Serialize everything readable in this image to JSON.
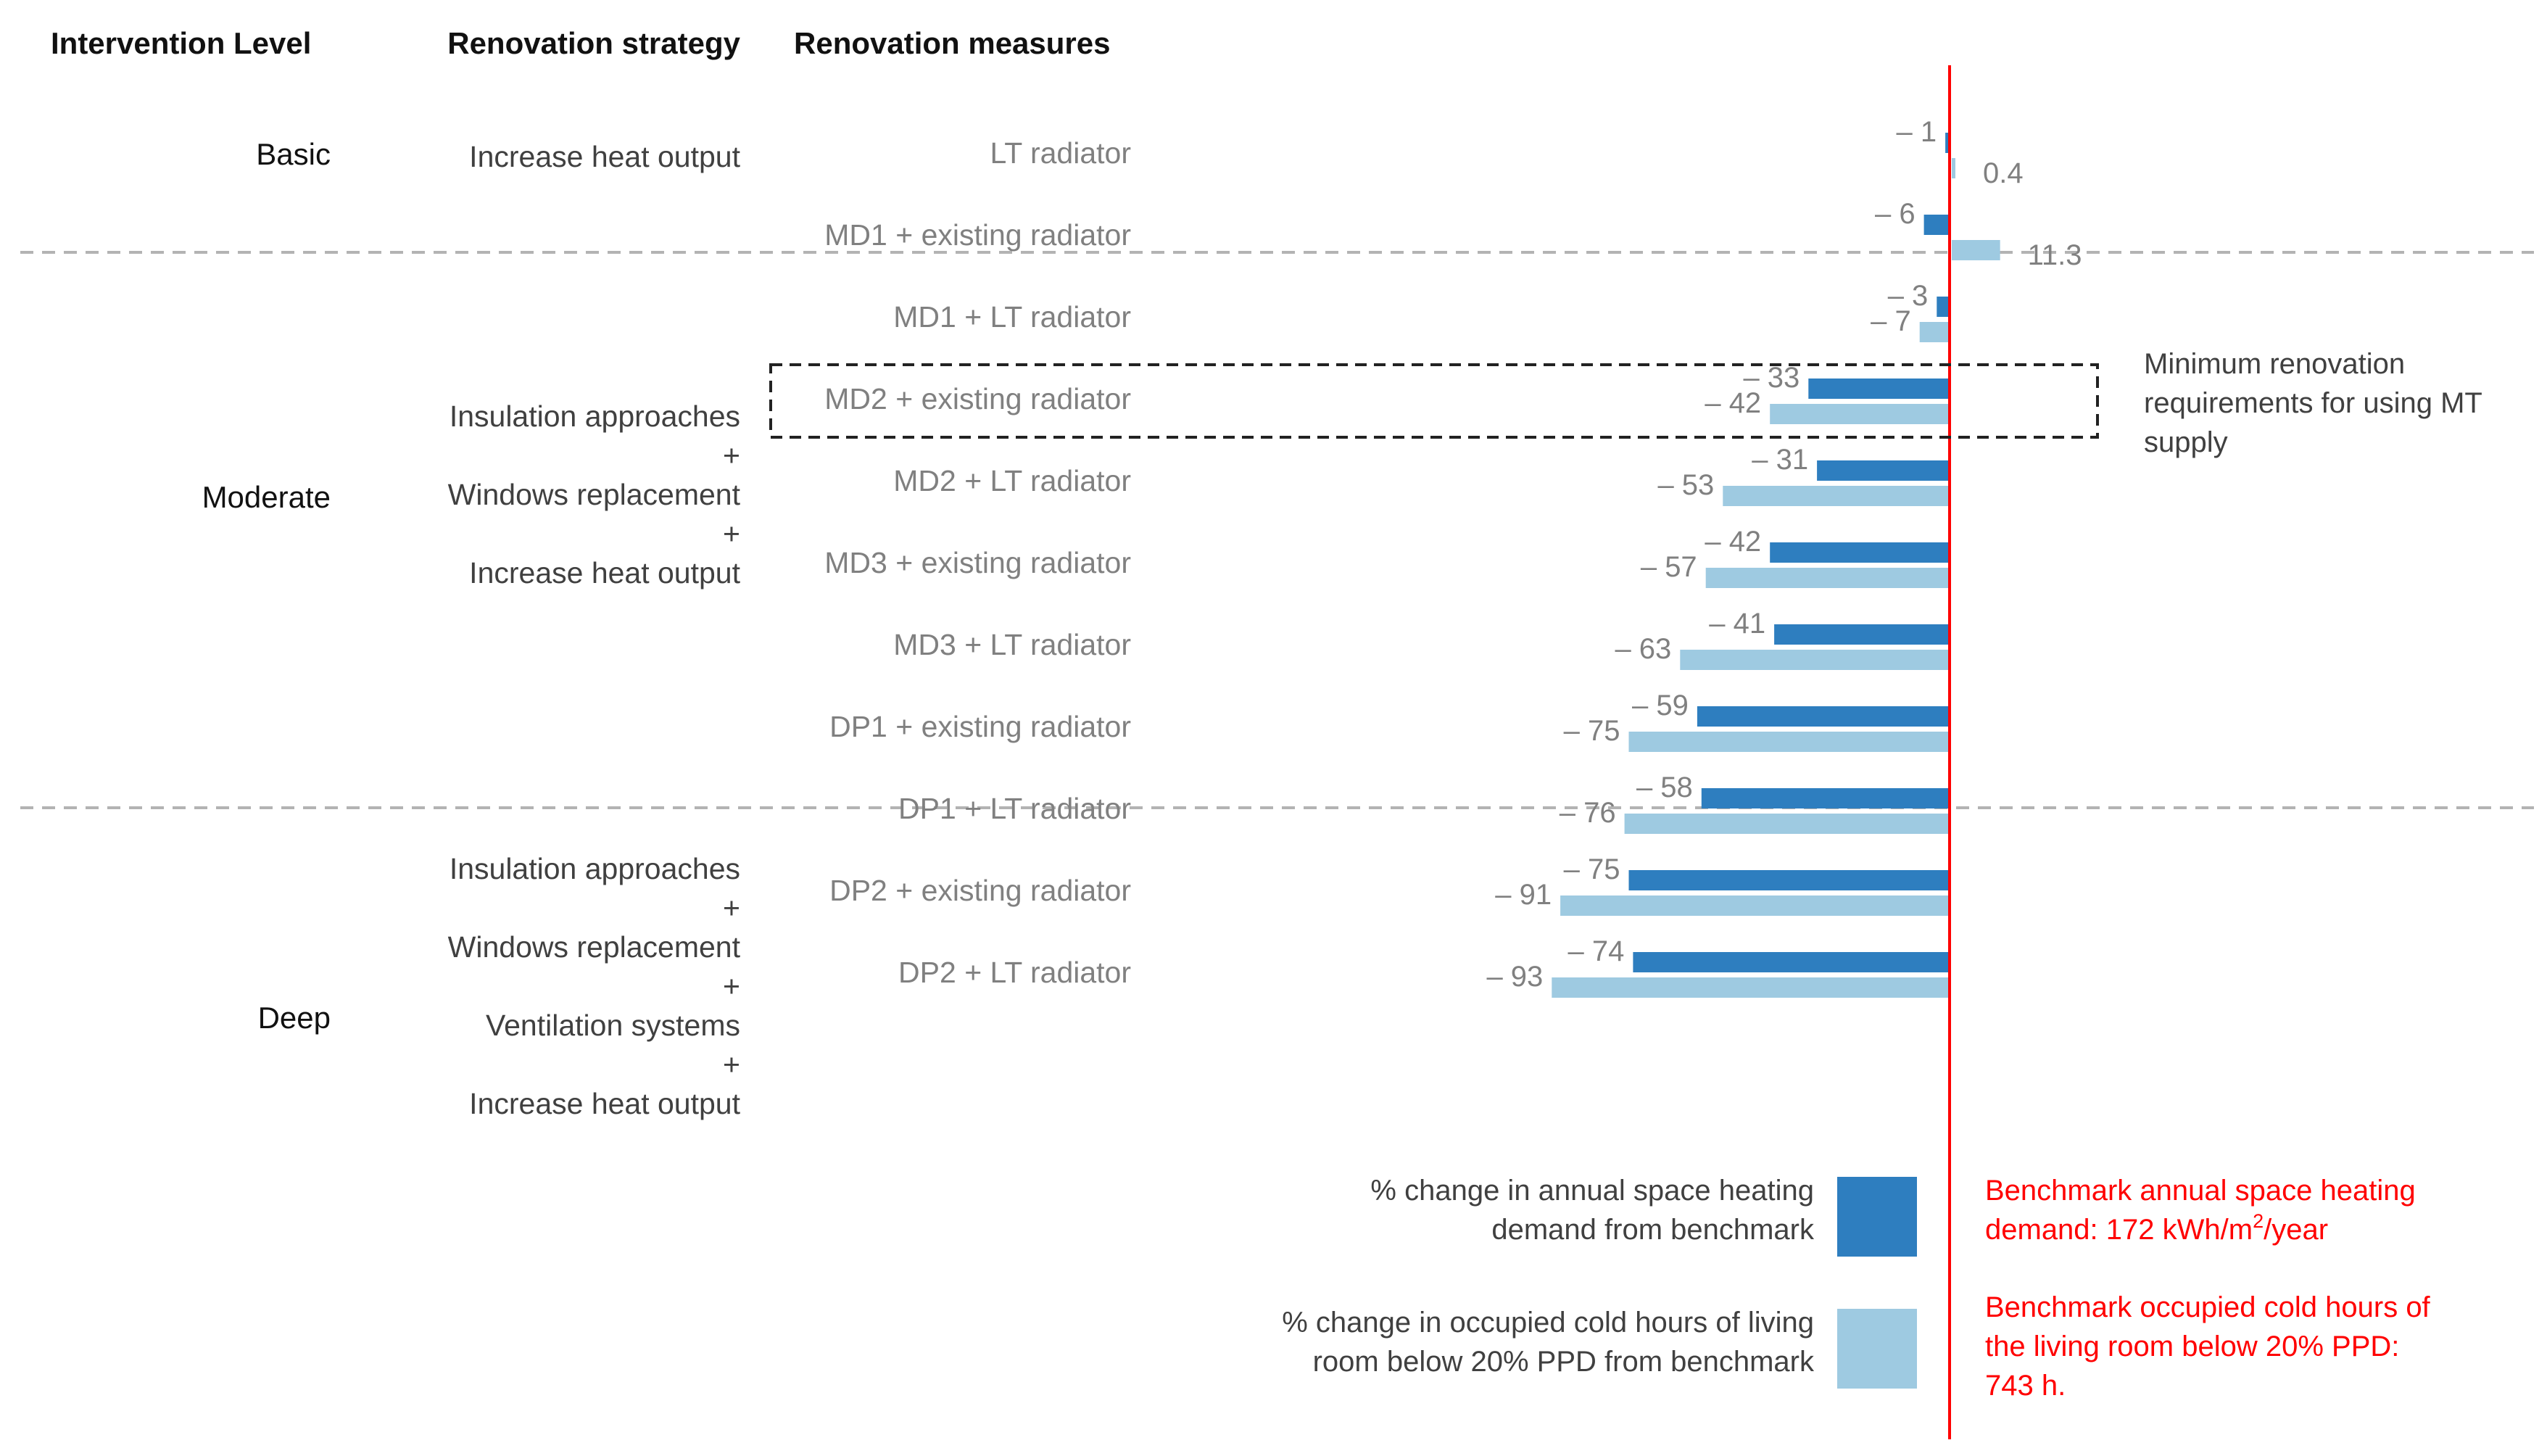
{
  "chart_data": {
    "type": "bar",
    "orientation": "horizontal",
    "headers": {
      "intervention": "Intervention Level",
      "strategy": "Renovation strategy",
      "measures": "Renovation measures"
    },
    "levels": [
      {
        "name": "Basic",
        "strategy": [
          "Increase heat output"
        ]
      },
      {
        "name": "Moderate",
        "strategy": [
          "Insulation approaches",
          "+",
          "Windows replacement",
          "+",
          "Increase heat output"
        ]
      },
      {
        "name": "Deep",
        "strategy": [
          "Insulation approaches",
          "+",
          "Windows replacement",
          "+",
          "Ventilation systems",
          "+",
          "Increase heat output"
        ]
      }
    ],
    "categories": [
      "LT radiator",
      "MD1 + existing radiator",
      "MD1 + LT radiator",
      "MD2 + existing radiator",
      "MD2 + LT radiator",
      "MD3 + existing radiator",
      "MD3 + LT radiator",
      "DP1 + existing radiator",
      "DP1 + LT radiator",
      "DP2 + existing radiator",
      "DP2 + LT radiator"
    ],
    "series": [
      {
        "name": "% change in annual space heating demand from benchmark",
        "color": "#2e7ebf",
        "values": [
          -1,
          -6,
          -3,
          -33,
          -31,
          -42,
          -41,
          -59,
          -58,
          -75,
          -74
        ],
        "labels": [
          "– 1",
          "– 6",
          "– 3",
          "– 33",
          "– 31",
          "– 42",
          "– 41",
          "– 59",
          "– 58",
          "– 75",
          "– 74"
        ]
      },
      {
        "name": "% change in occupied cold hours of living room below 20% PPD from benchmark",
        "color": "#9ecae1",
        "values": [
          0.4,
          11.3,
          -7,
          -42,
          -53,
          -57,
          -63,
          -75,
          -76,
          -91,
          -93
        ],
        "labels": [
          "0.4",
          "11.3",
          "– 7",
          "– 42",
          "– 53",
          "– 57",
          "– 63",
          "– 75",
          "– 76",
          "– 91",
          "– 93"
        ]
      }
    ],
    "axis_range": [
      -100,
      30
    ],
    "annotation": "Minimum renovation requirements for using MT supply",
    "annotation_lines": [
      "Minimum renovation",
      "requirements for using MT",
      "supply"
    ],
    "legend": [
      {
        "lines": [
          "% change in annual space heating",
          "demand from benchmark"
        ],
        "color": "#2e7ebf"
      },
      {
        "lines": [
          "% change in occupied cold hours of living",
          "room below 20% PPD from benchmark"
        ],
        "color": "#9ecae1"
      }
    ],
    "benchmark_color": "#ff0000",
    "benchmark_notes": [
      {
        "line1": "Benchmark annual space heating",
        "line2_pre": "demand: 172 kWh/m",
        "sup": "2",
        "line2_post": "/year"
      },
      {
        "lines": [
          "Benchmark occupied cold hours of",
          "the living room below 20% PPD:",
          "743 h."
        ]
      }
    ]
  }
}
